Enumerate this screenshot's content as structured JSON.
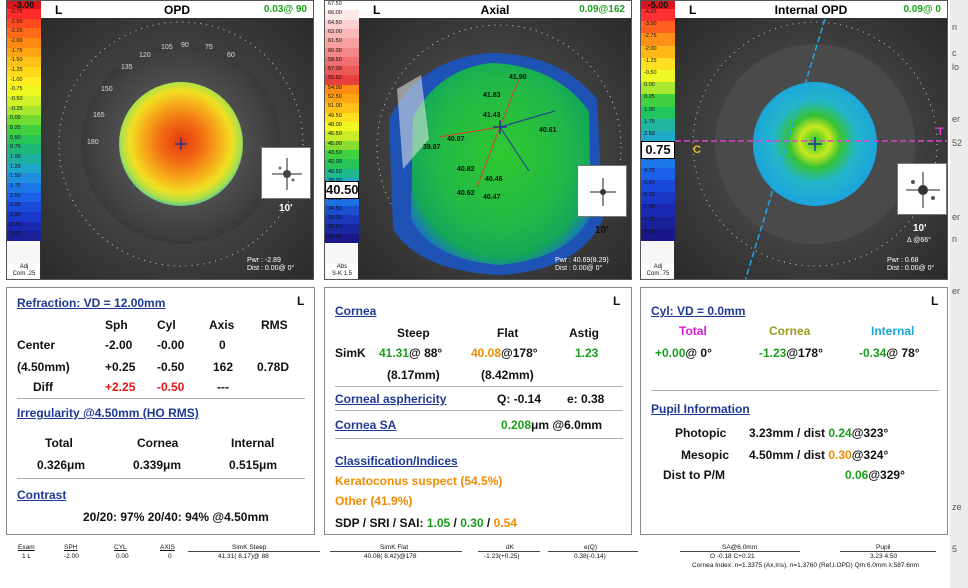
{
  "maps": {
    "opd": {
      "eye": "L",
      "title": "OPD",
      "reading": "0.03@ 90",
      "scale_top": "-3.00",
      "scale": [
        "-2.75",
        "-2.50",
        "-2.25",
        "-2.00",
        "-1.75",
        "-1.50",
        "-1.25",
        "-1.00",
        "-0.75",
        "-0.50",
        "-0.25",
        "0.00",
        "0.25",
        "0.50",
        "0.75",
        "1.00",
        "1.25",
        "1.50",
        "1.75",
        "2.00",
        "2.25",
        "2.50",
        "2.75",
        "3.00"
      ],
      "scale_foot": [
        "Adj",
        "Com .25"
      ],
      "inset_label": "10'",
      "pwr": [
        "Pwr : -2.89",
        "Dist : 0.00@ 0°"
      ],
      "angles": [
        "120",
        "105",
        "90",
        "75",
        "60",
        "135",
        "150",
        "165",
        "180"
      ]
    },
    "axial": {
      "eye": "L",
      "title": "Axial",
      "reading": "0.09@162",
      "highlight": "40.50",
      "scale": [
        "67.50",
        "66.00",
        "64.50",
        "63.00",
        "61.50",
        "60.00",
        "58.50",
        "57.00",
        "55.50",
        "54.00",
        "52.50",
        "51.00",
        "49.50",
        "48.00",
        "46.50",
        "45.00",
        "43.50",
        "42.00",
        "40.50",
        "39.00",
        "37.50",
        "36.00",
        "34.50",
        "33.00",
        "31.50",
        "30.00"
      ],
      "scale_foot": [
        "Abs",
        "S-K 1.5"
      ],
      "inset_label": "10'",
      "pwr": [
        "Pwr : 40.69(8.29)",
        "Dist : 0.00@ 0°"
      ],
      "values": [
        "41.90",
        "41.83",
        "41.43",
        "40.61",
        "40.07",
        "39.87",
        "40.82",
        "40.46",
        "40.62",
        "40.47"
      ]
    },
    "internal": {
      "eye": "L",
      "title": "Internal OPD",
      "reading": "0.09@  0",
      "highlight": "0.75",
      "scale_top": "-5.00",
      "scale": [
        "-4.25",
        "-3.50",
        "-2.75",
        "-2.00",
        "-1.25",
        "-0.50",
        "0.00",
        "0.25",
        "1.00",
        "1.75",
        "2.50",
        "3.25",
        "4.00",
        "4.75",
        "5.50",
        "6.25",
        "7.00",
        "7.75",
        "8.50"
      ],
      "scale_foot": [
        "Adj",
        "Com .75"
      ],
      "inset_label": "10'",
      "axis_label": "Δ @66°",
      "pwr": [
        "Pwr : 0.68",
        "Dist : 0.00@ 0°"
      ],
      "c_label": "C",
      "t_label": "T"
    }
  },
  "refraction": {
    "title": "Refraction: VD = 12.00mm",
    "eye": "L",
    "headers": [
      "Sph",
      "Cyl",
      "Axis",
      "RMS"
    ],
    "rows": [
      {
        "label": "Center",
        "sph": "-2.00",
        "cyl": "-0.00",
        "axis": "0",
        "rms": ""
      },
      {
        "label": "(4.50mm)",
        "sph": "+0.25",
        "cyl": "-0.50",
        "axis": "162",
        "rms": "0.78D"
      },
      {
        "label": "Diff",
        "sph": "+2.25",
        "cyl": "-0.50",
        "axis": "---",
        "rms": ""
      }
    ],
    "irregularity_title": "Irregularity @4.50mm (HO RMS)",
    "irr_headers": [
      "Total",
      "Cornea",
      "Internal"
    ],
    "irr_values": [
      "0.326μm",
      "0.339μm",
      "0.515μm"
    ],
    "contrast_title": "Contrast",
    "contrast_line": "20/20: 97%  20/40: 94%  @4.50mm"
  },
  "cornea": {
    "title": "Cornea",
    "eye": "L",
    "headers": [
      "Steep",
      "Flat",
      "Astig"
    ],
    "simk_label": "SimK",
    "steep": "41.31",
    "steep_axis": "@ 88°",
    "flat": "40.08",
    "flat_axis": "@178°",
    "astig": "1.23",
    "steep_mm": "(8.17mm)",
    "flat_mm": "(8.42mm)",
    "asph_title": "Corneal asphericity",
    "q": "Q: -0.14",
    "e": "e: 0.38",
    "sa_title": "Cornea SA",
    "sa_value": "0.208",
    "sa_unit": "μm @6.0mm",
    "class_title": "Classification/Indices",
    "class_1": "Keratoconus suspect (54.5%)",
    "class_2": "Other (41.9%)",
    "sdp_label": "SDP / SRI / SAI:",
    "sdp": "1.05",
    "sri": "0.30",
    "sai": "0.54"
  },
  "cyl": {
    "title": "Cyl: VD = 0.0mm",
    "eye": "L",
    "headers": [
      "Total",
      "Cornea",
      "Internal"
    ],
    "total": "+0.00",
    "total_axis": "@  0°",
    "cornea": "-1.23",
    "cornea_axis": "@178°",
    "internal": "-0.34",
    "internal_axis": "@ 78°",
    "pupil_title": "Pupil Information",
    "photopic_label": "Photopic",
    "photopic_val": "3.23mm / dist",
    "photopic_dist": "0.24",
    "photopic_axis": "@323°",
    "mesopic_label": "Mesopic",
    "mesopic_val": "4.50mm / dist",
    "mesopic_dist": "0.30",
    "mesopic_axis": "@324°",
    "pm_label": "Dist to P/M",
    "pm_dist": "0.06",
    "pm_axis": "@329°"
  },
  "bottom": {
    "exam_h": "Exam",
    "exam_v": "1 L",
    "sph_h": "SPH",
    "sph_v": "-2.00",
    "cyl_h": "CYL",
    "cyl_v": "0.00",
    "axis_h": "AXIS",
    "axis_v": "0",
    "simk_steep_h": "SimK Steep",
    "simk_steep_v": "41.31( 8.17)@ 88",
    "simk_flat_h": "SimK Flat",
    "simk_flat_v": "40.08( 8.42)@178",
    "dk_h": "dK",
    "dk_v": "-1.23(+0.25)",
    "eq_h": "e(Q)",
    "eq_v": "0.38(-0.14)",
    "sa_h": "SA@6.0mm",
    "sa_v": "O -0.18  C+0.21",
    "pupil_h": "Pupil",
    "pupil_v": "3.23   4.50",
    "index_line": "Cornea Index: n=1.3375 (Ax,Ins), n=1.3760 (Ref,I.OPD)  Qm:6.0mm  λ:587.6nm"
  },
  "edge_chars": [
    "n",
    "c",
    "lo",
    "er",
    "52",
    "er",
    "n",
    "er",
    "ze",
    "5"
  ],
  "colors": {
    "header_blue": "#1f3a93",
    "green": "#1a9e1a",
    "red": "#e01818",
    "orange": "#f08c00",
    "magenta": "#d81bd8",
    "olive": "#9a9a1c",
    "cyan": "#1aa6e0"
  }
}
